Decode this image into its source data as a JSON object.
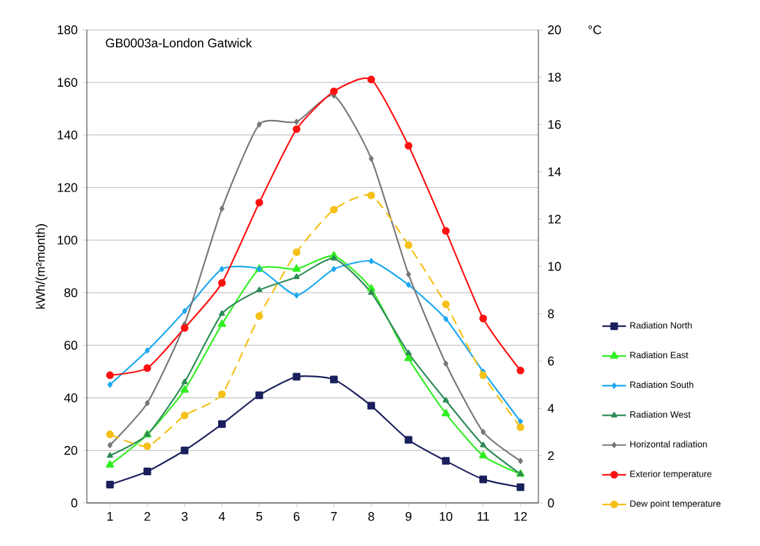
{
  "chart_data": {
    "type": "line",
    "title": "GB0003a-London Gatwick",
    "ylabel": "kWh/(m²month)",
    "y2label": "°C",
    "categories": [
      "1",
      "2",
      "3",
      "4",
      "5",
      "6",
      "7",
      "8",
      "9",
      "10",
      "11",
      "12"
    ],
    "ylim": [
      0,
      180
    ],
    "yticks": [
      0,
      20,
      40,
      60,
      80,
      100,
      120,
      140,
      160,
      180
    ],
    "y2lim": [
      0,
      20
    ],
    "y2ticks": [
      0,
      2,
      4,
      6,
      8,
      10,
      12,
      14,
      16,
      18,
      20
    ],
    "grid": "y",
    "legend": "right",
    "series": [
      {
        "name": "Radiation North",
        "color": "#1a1f5e",
        "marker": "square",
        "line_style": "solid",
        "values": [
          7,
          12,
          20,
          30,
          41,
          48,
          47,
          37,
          24,
          16,
          9,
          6
        ]
      },
      {
        "name": "Radiation East",
        "color": "#33ee22",
        "marker": "triangle",
        "line_style": "solid",
        "values": [
          14.5,
          26,
          43,
          68,
          89,
          89,
          94,
          81.5,
          55,
          34,
          18,
          11
        ]
      },
      {
        "name": "Radiation South",
        "color": "#1ca9f0",
        "marker": "diamond",
        "line_style": "solid",
        "values": [
          45,
          58,
          73,
          89,
          89,
          79,
          89,
          92,
          83,
          70,
          50,
          31
        ]
      },
      {
        "name": "Radiation West",
        "color": "#2e8b57",
        "marker": "triangle",
        "line_style": "solid",
        "values": [
          18,
          26,
          46,
          72,
          81,
          86,
          93,
          80,
          57,
          39,
          22,
          11
        ]
      },
      {
        "name": "Horizontal radiation",
        "color": "#777777",
        "marker": "diamond",
        "line_style": "solid",
        "values": [
          22,
          38,
          68,
          112,
          144,
          145,
          155,
          131,
          87,
          53,
          27,
          16
        ]
      },
      {
        "name": "Exterior temperature",
        "color": "#ff1010",
        "marker": "circle",
        "line_style": "solid",
        "axis": "y2",
        "values": [
          5.4,
          5.7,
          7.4,
          9.3,
          12.7,
          15.8,
          17.4,
          17.9,
          15.1,
          11.5,
          7.8,
          5.6
        ]
      },
      {
        "name": "Dew point temperature",
        "color": "#f5c018",
        "marker": "circle",
        "line_style": "dashed",
        "axis": "y2",
        "values": [
          2.9,
          2.4,
          3.7,
          4.6,
          7.9,
          10.6,
          12.4,
          13.0,
          10.9,
          8.4,
          5.4,
          3.2
        ]
      }
    ]
  }
}
